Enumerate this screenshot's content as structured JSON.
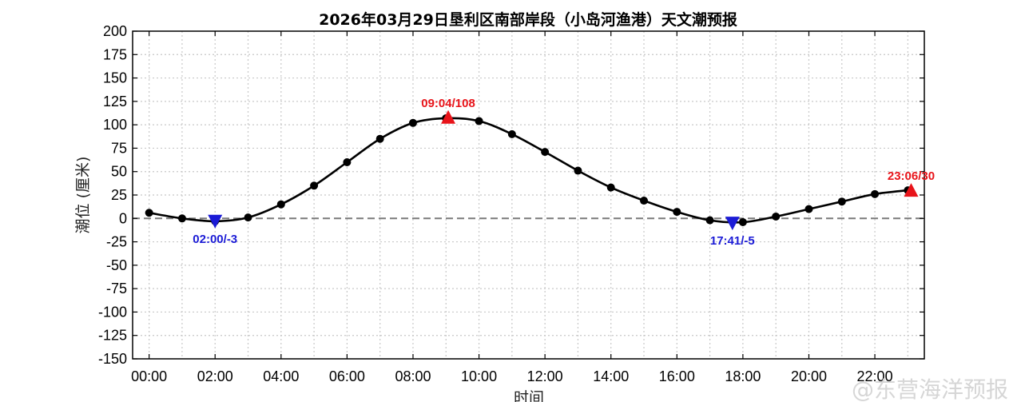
{
  "chart_data": {
    "type": "line",
    "title": "2026年03月29日垦利区南部岸段（小岛河渔港）天文潮预报",
    "xlabel": "时间",
    "ylabel": "潮位 (厘米)",
    "ylim": [
      -150,
      200
    ],
    "yticks": [
      -150,
      -125,
      -100,
      -75,
      -50,
      -25,
      0,
      25,
      50,
      75,
      100,
      125,
      150,
      175,
      200
    ],
    "xlim": [
      -0.5,
      23.5
    ],
    "xticks": [
      0,
      2,
      4,
      6,
      8,
      10,
      12,
      14,
      16,
      18,
      20,
      22
    ],
    "xtick_labels": [
      "00:00",
      "02:00",
      "04:00",
      "06:00",
      "08:00",
      "10:00",
      "12:00",
      "14:00",
      "16:00",
      "18:00",
      "20:00",
      "22:00"
    ],
    "grid": true,
    "zero_line": true,
    "hourly": {
      "x": [
        0,
        1,
        2,
        3,
        4,
        5,
        6,
        7,
        8,
        9,
        10,
        11,
        12,
        13,
        14,
        15,
        16,
        17,
        18,
        19,
        20,
        21,
        22,
        23
      ],
      "y": [
        6,
        0,
        -3,
        1,
        15,
        35,
        60,
        85,
        102,
        107,
        104,
        90,
        71,
        51,
        33,
        19,
        7,
        -2,
        -4,
        2,
        10,
        18,
        26,
        30
      ]
    },
    "highs": [
      {
        "time": 9.067,
        "value": 108,
        "label": "09:04/108"
      },
      {
        "time": 23.1,
        "value": 30,
        "label": "23:06/30"
      }
    ],
    "lows": [
      {
        "time": 2.0,
        "value": -3,
        "label": "02:00/-3"
      },
      {
        "time": 17.683,
        "value": -5,
        "label": "17:41/-5"
      }
    ],
    "colors": {
      "curve": "#000000",
      "high": "#e8141a",
      "low": "#1b1bd6",
      "grid": "#c8c8c8",
      "zero": "#7a7a7a"
    }
  },
  "watermark": "@东营海洋预报"
}
